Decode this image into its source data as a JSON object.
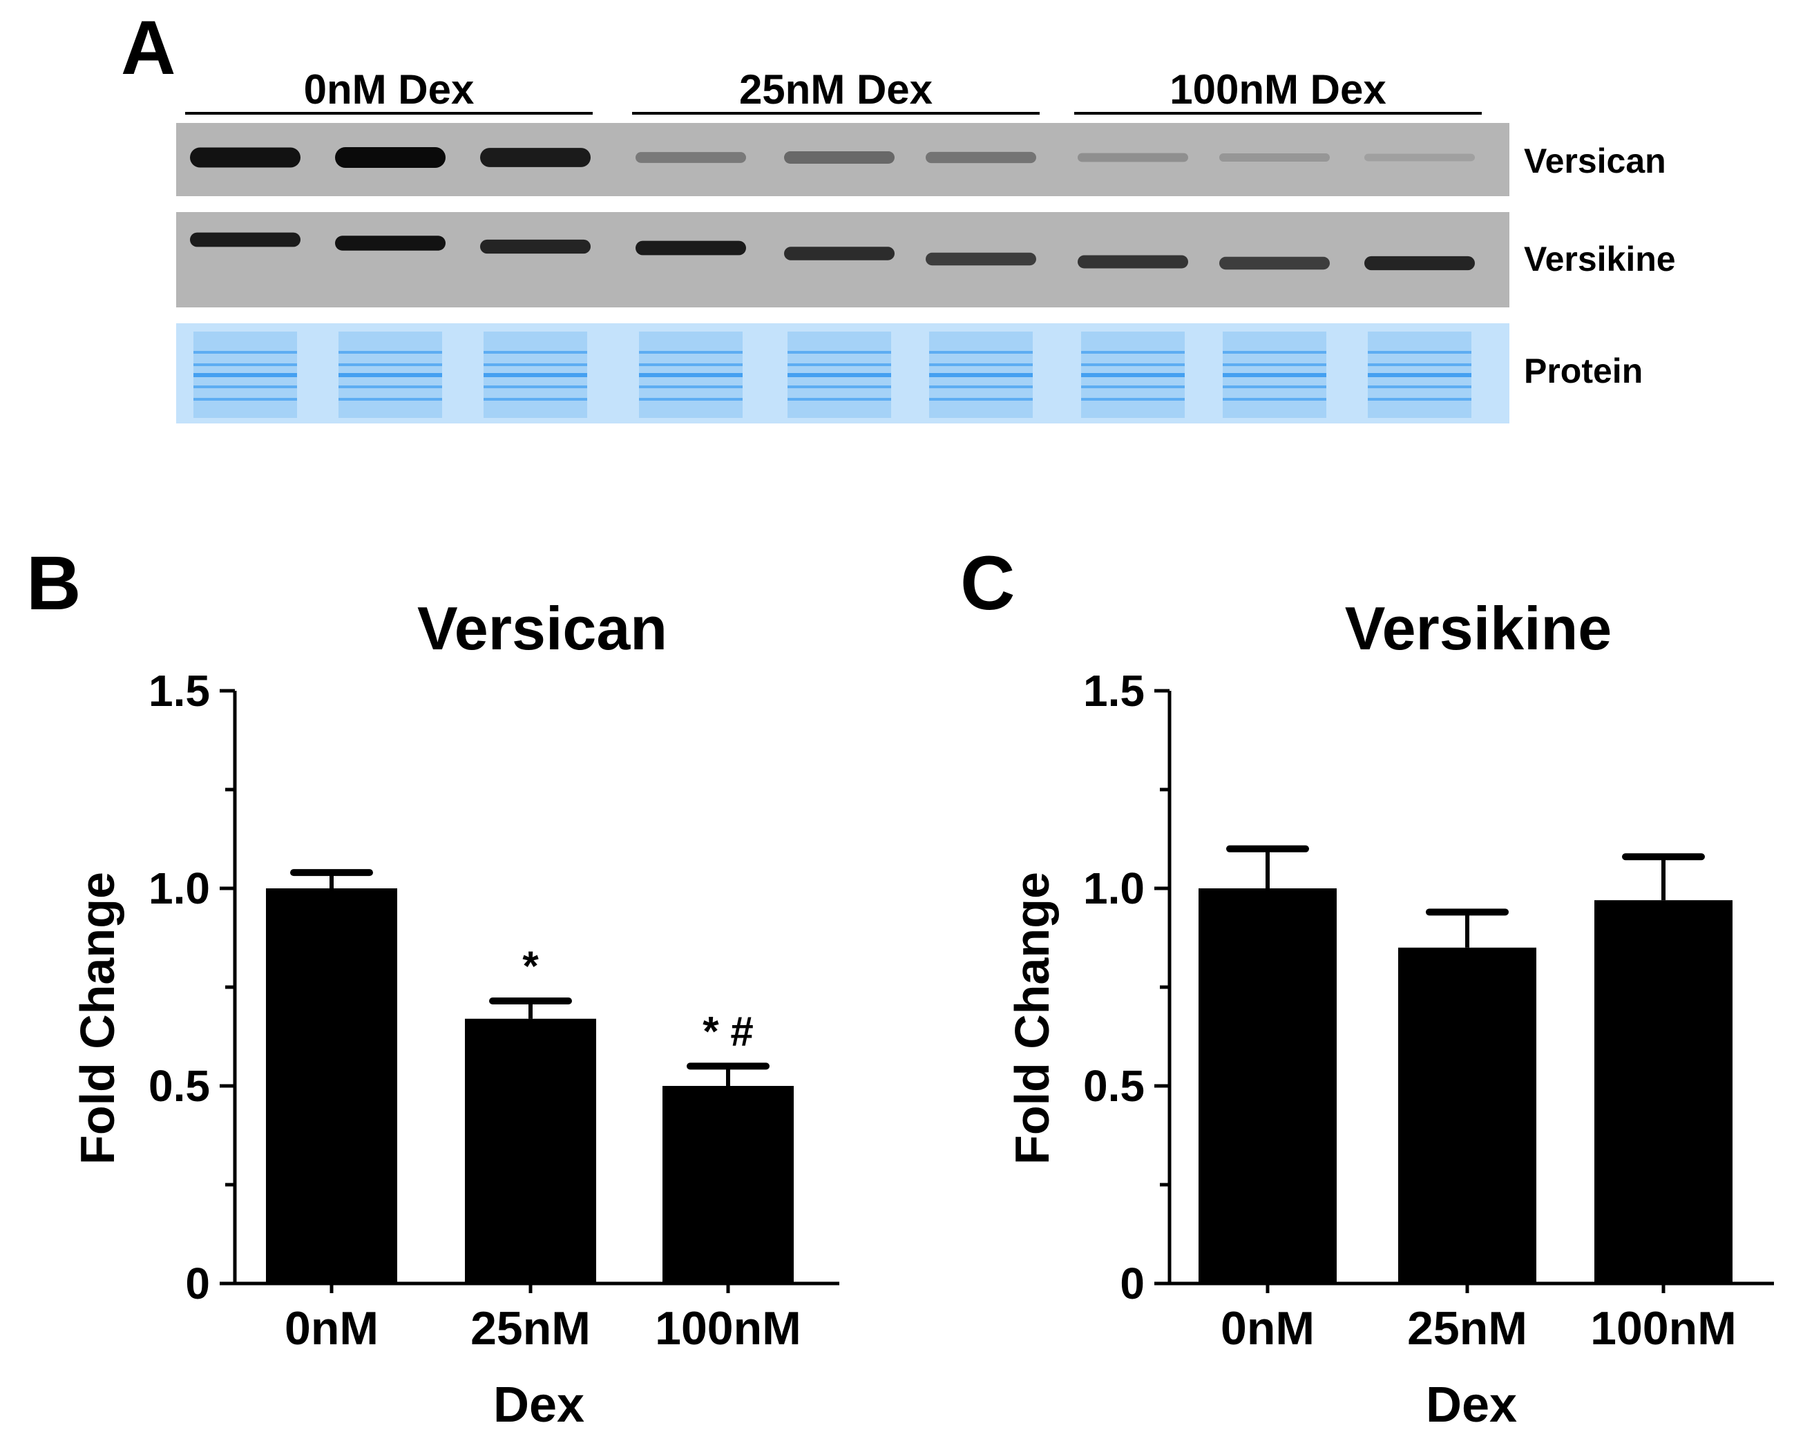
{
  "panel_a": {
    "letter": "A",
    "groups": [
      {
        "label": "0nM Dex"
      },
      {
        "label": "25nM Dex"
      },
      {
        "label": "100nM Dex"
      }
    ],
    "blots": [
      {
        "label": "Versican",
        "intensities": [
          0.95,
          1.0,
          0.9,
          0.35,
          0.45,
          0.38,
          0.22,
          0.18,
          0.12
        ]
      },
      {
        "label": "Versikine",
        "intensities": [
          0.9,
          0.95,
          0.85,
          0.9,
          0.8,
          0.7,
          0.75,
          0.7,
          0.85
        ]
      },
      {
        "label": "Protein",
        "intensities": [
          1,
          1,
          1,
          1,
          1,
          1,
          1,
          1,
          1
        ]
      }
    ],
    "colors": {
      "blot_bg": "#b5b5b5",
      "band": "#0a0a0a",
      "protein_bg": "#c4e2fb",
      "protein_band": "#3f9df0"
    }
  },
  "chart_data": [
    {
      "letter": "B",
      "type": "bar",
      "title": "Versican",
      "ylabel": "Fold Change",
      "xlabel": "Dex",
      "categories": [
        "0nM",
        "25nM",
        "100nM"
      ],
      "values": [
        1.0,
        0.67,
        0.5
      ],
      "errors": [
        0.04,
        0.045,
        0.05
      ],
      "annotations": [
        "",
        "*",
        "* #"
      ],
      "ylim": [
        0,
        1.5
      ],
      "yticks": [
        {
          "v": 0,
          "label": "0"
        },
        {
          "v": 0.5,
          "label": "0.5"
        },
        {
          "v": 1.0,
          "label": "1.0"
        },
        {
          "v": 1.5,
          "label": "1.5"
        }
      ],
      "color": "#000000"
    },
    {
      "letter": "C",
      "type": "bar",
      "title": "Versikine",
      "ylabel": "Fold Change",
      "xlabel": "Dex",
      "categories": [
        "0nM",
        "25nM",
        "100nM"
      ],
      "values": [
        1.0,
        0.85,
        0.97
      ],
      "errors": [
        0.1,
        0.09,
        0.11
      ],
      "annotations": [
        "",
        "",
        ""
      ],
      "ylim": [
        0,
        1.5
      ],
      "yticks": [
        {
          "v": 0,
          "label": "0"
        },
        {
          "v": 0.5,
          "label": "0.5"
        },
        {
          "v": 1.0,
          "label": "1.0"
        },
        {
          "v": 1.5,
          "label": "1.5"
        }
      ],
      "color": "#000000"
    }
  ]
}
